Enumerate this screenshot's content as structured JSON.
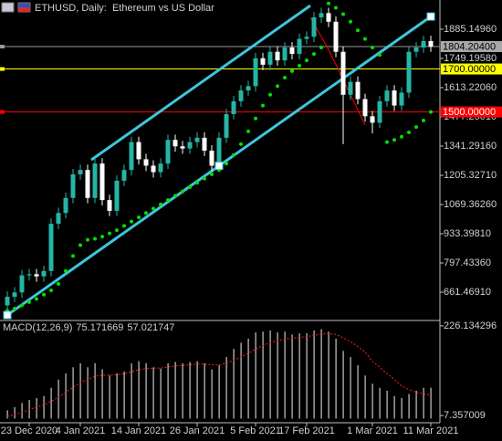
{
  "chart_data": [
    {
      "type": "candlestick",
      "title": "ETHUSD, Daily:  Ethereum vs US Dollar",
      "categories": [
        null,
        null,
        null,
        "23 Dec 2020",
        null,
        null,
        null,
        null,
        null,
        null,
        "4 Jan 2021",
        null,
        null,
        null,
        null,
        null,
        null,
        null,
        "14 Jan 2021",
        null,
        null,
        null,
        null,
        null,
        null,
        null,
        "26 Jan 2021",
        null,
        null,
        null,
        null,
        null,
        null,
        null,
        "5 Feb 2021",
        null,
        null,
        null,
        null,
        null,
        null,
        "17 Feb 2021",
        null,
        null,
        null,
        null,
        null,
        null,
        null,
        null,
        "1 Mar 2021",
        null,
        null,
        null,
        null,
        null,
        null,
        null,
        "11 Mar 2021"
      ],
      "open": [
        600,
        640,
        660,
        740,
        745,
        735,
        760,
        980,
        1030,
        1100,
        1210,
        1230,
        1100,
        1260,
        1090,
        1040,
        1180,
        1230,
        1360,
        1280,
        1250,
        1220,
        1260,
        1370,
        1340,
        1330,
        1360,
        1380,
        1320,
        1250,
        1380,
        1490,
        1550,
        1600,
        1620,
        1750,
        1720,
        1780,
        1740,
        1800,
        1770,
        1840,
        1850,
        1940,
        1960,
        1920,
        1780,
        1580,
        1640,
        1560,
        1480,
        1450,
        1550,
        1600,
        1530,
        1590,
        1780,
        1800,
        1830
      ],
      "high": [
        665,
        685,
        765,
        770,
        770,
        785,
        1005,
        1055,
        1125,
        1235,
        1255,
        1255,
        1285,
        1285,
        1115,
        1205,
        1255,
        1385,
        1385,
        1305,
        1275,
        1285,
        1395,
        1395,
        1365,
        1385,
        1405,
        1405,
        1345,
        1405,
        1515,
        1575,
        1625,
        1645,
        1775,
        1775,
        1805,
        1805,
        1825,
        1825,
        1865,
        1875,
        1965,
        1985,
        1985,
        1945,
        1805,
        1665,
        1665,
        1585,
        1505,
        1575,
        1625,
        1625,
        1615,
        1805,
        1825,
        1855,
        1855
      ],
      "low": [
        575,
        615,
        635,
        715,
        710,
        710,
        735,
        955,
        1005,
        1075,
        1185,
        1075,
        1075,
        1065,
        1015,
        1015,
        1155,
        1205,
        1255,
        1225,
        1195,
        1195,
        1235,
        1315,
        1305,
        1305,
        1335,
        1295,
        1225,
        1225,
        1355,
        1465,
        1525,
        1575,
        1595,
        1695,
        1695,
        1715,
        1715,
        1745,
        1745,
        1815,
        1825,
        1915,
        1895,
        1755,
        1350,
        1555,
        1535,
        1455,
        1400,
        1425,
        1525,
        1505,
        1505,
        1565,
        1755,
        1775,
        1780
      ],
      "close": [
        640,
        660,
        740,
        745,
        735,
        760,
        980,
        1030,
        1100,
        1210,
        1230,
        1100,
        1260,
        1090,
        1040,
        1180,
        1230,
        1360,
        1280,
        1250,
        1220,
        1260,
        1370,
        1340,
        1330,
        1360,
        1380,
        1320,
        1250,
        1380,
        1490,
        1550,
        1600,
        1620,
        1750,
        1720,
        1780,
        1740,
        1800,
        1770,
        1840,
        1850,
        1940,
        1960,
        1920,
        1780,
        1580,
        1640,
        1560,
        1480,
        1450,
        1550,
        1600,
        1530,
        1590,
        1780,
        1800,
        1830,
        1804.204
      ],
      "up_color": "#26b5a5",
      "down_color": "#ffffff",
      "ylim": [
        534,
        2021
      ],
      "yticks": [
        {
          "value": 661.4691,
          "label": "661.46910"
        },
        {
          "value": 797.4336,
          "label": "797.43360"
        },
        {
          "value": 933.3981,
          "label": "933.39810"
        },
        {
          "value": 1069.3626,
          "label": "1069.36260"
        },
        {
          "value": 1205.3271,
          "label": "1205.32710"
        },
        {
          "value": 1341.2916,
          "label": "1341.29160"
        },
        {
          "value": 1477.2501,
          "label": "1477.25010"
        },
        {
          "value": 1613.2206,
          "label": "1613.22060"
        },
        {
          "value": 1749.1958,
          "label": "1749.19580"
        },
        {
          "value": 1885.1496,
          "label": "1885.14960"
        }
      ],
      "sar": {
        "color": "#00e000",
        "values": [
          575,
          585,
          600,
          615,
          630,
          650,
          670,
          700,
          760,
          830,
          880,
          905,
          910,
          920,
          935,
          950,
          970,
          990,
          1010,
          1030,
          1050,
          1070,
          1090,
          1110,
          1130,
          1150,
          1170,
          1190,
          1210,
          1230,
          1260,
          1300,
          1350,
          1410,
          1470,
          1530,
          1580,
          1620,
          1660,
          1690,
          1715,
          1740,
          1770,
          1800,
          2005,
          1985,
          1955,
          1920,
          1880,
          1840,
          1800,
          1765,
          1360,
          1370,
          1385,
          1405,
          1430,
          1460,
          1500
        ]
      },
      "levels": [
        {
          "value": 1804.204,
          "label": "1804.20400",
          "color": "#9a9a9a",
          "box": "#a8a8a8",
          "text_color": "#000000"
        },
        {
          "value": 1700,
          "label": "1700.00000",
          "color": "#ffff00",
          "box": "#ffff00",
          "text_color": "#000000"
        },
        {
          "value": 1500,
          "label": "1500.00000",
          "color": "#ff0000",
          "box": "#ff0000",
          "text_color": "#ffffff"
        }
      ],
      "trendlines": [
        {
          "color": "#3ec6dc",
          "width": 3,
          "handles": true,
          "points": [
            [
              0,
              555
            ],
            [
              29,
              1249.5
            ],
            [
              58,
              1944
            ]
          ]
        },
        {
          "color": "#3ec6dc",
          "width": 3,
          "handles": false,
          "points": [
            [
              11.5,
              1277
            ],
            [
              41.5,
              1995
            ]
          ]
        },
        {
          "color": "#ff0000",
          "width": 1,
          "handles": false,
          "points": [
            [
              41.5,
              1940
            ],
            [
              44,
              1790
            ],
            [
              49,
              1440
            ]
          ]
        }
      ]
    },
    {
      "type": "macd",
      "title": "MACD(12,26,9)",
      "current": [
        75.171669,
        57.021747
      ],
      "histogram": {
        "color": "#c8c8c8",
        "values": [
          20,
          28,
          38,
          45,
          50,
          55,
          75,
          95,
          110,
          125,
          135,
          125,
          135,
          120,
          105,
          110,
          115,
          135,
          140,
          135,
          125,
          122,
          135,
          138,
          135,
          138,
          140,
          135,
          120,
          130,
          150,
          170,
          185,
          195,
          210,
          212,
          215,
          210,
          212,
          205,
          208,
          208,
          215,
          218,
          212,
          195,
          165,
          150,
          130,
          105,
          85,
          75,
          68,
          55,
          50,
          60,
          68,
          75,
          75.171669
        ]
      },
      "signal": {
        "color": "#ff2020",
        "values": [
          5,
          10,
          15,
          22,
          28,
          33,
          42,
          52,
          64,
          76,
          88,
          95,
          103,
          106,
          106,
          107,
          109,
          114,
          119,
          122,
          123,
          123,
          126,
          128,
          130,
          131,
          133,
          133,
          131,
          131,
          135,
          142,
          150,
          159,
          169,
          178,
          185,
          190,
          194,
          196,
          198,
          200,
          203,
          206,
          207,
          205,
          197,
          188,
          176,
          162,
          140,
          125,
          110,
          95,
          80,
          70,
          64,
          60,
          57.021747
        ]
      },
      "ylim": [
        -8,
        237
      ],
      "yticks": [
        7.357009,
        226.134296
      ]
    }
  ]
}
